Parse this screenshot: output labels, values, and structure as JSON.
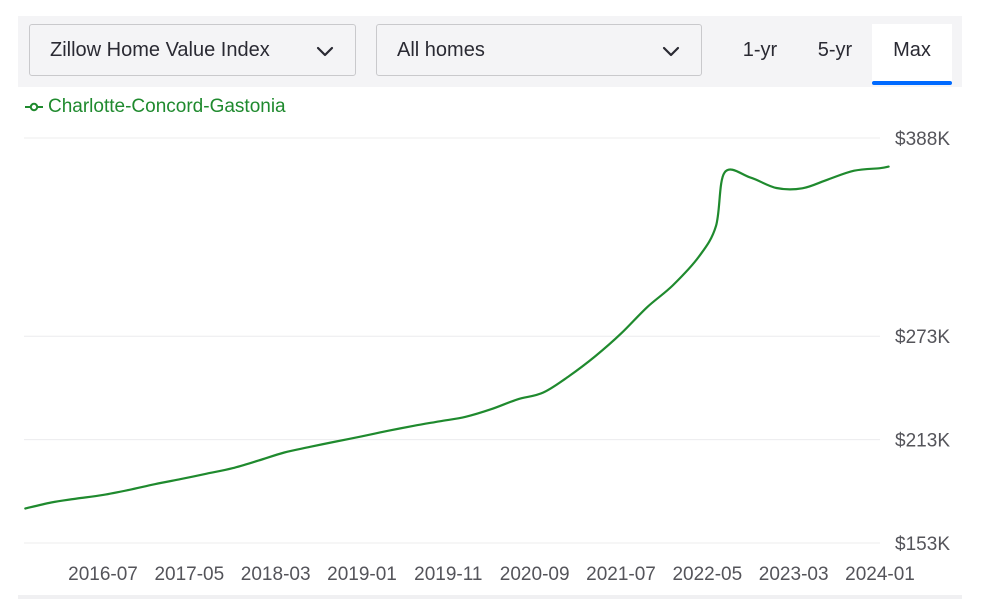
{
  "controls": {
    "metric_select": {
      "value": "Zillow Home Value Index",
      "icon": "chevron-down-icon"
    },
    "home_type_select": {
      "value": "All homes",
      "icon": "chevron-down-icon"
    },
    "ranges": [
      {
        "label": "1-yr",
        "active": false
      },
      {
        "label": "5-yr",
        "active": false
      },
      {
        "label": "Max",
        "active": true
      }
    ],
    "accent_color": "#006aff"
  },
  "legend": {
    "label": "Charlotte-Concord-Gastonia",
    "color": "#1f8a2e"
  },
  "chart_data": {
    "type": "line",
    "title": "",
    "xlabel": "",
    "ylabel": "",
    "x_ticks": [
      "2016-07",
      "2017-05",
      "2018-03",
      "2019-01",
      "2019-11",
      "2020-09",
      "2021-07",
      "2022-05",
      "2023-03",
      "2024-01"
    ],
    "y_ticks": [
      {
        "value": 153000,
        "label": "$153K"
      },
      {
        "value": 213000,
        "label": "$213K"
      },
      {
        "value": 273000,
        "label": "$273K"
      },
      {
        "value": 388000,
        "label": "$388K"
      }
    ],
    "ylim": [
      153000,
      388000
    ],
    "grid": "horizontal",
    "y_axis_position": "right",
    "series": [
      {
        "name": "Charlotte-Concord-Gastonia",
        "color": "#1f8a2e",
        "x": [
          "2015-10",
          "2016-01",
          "2016-04",
          "2016-07",
          "2016-10",
          "2017-01",
          "2017-04",
          "2017-07",
          "2017-10",
          "2018-01",
          "2018-04",
          "2018-07",
          "2018-10",
          "2019-01",
          "2019-04",
          "2019-07",
          "2019-10",
          "2020-01",
          "2020-04",
          "2020-07",
          "2020-10",
          "2021-01",
          "2021-04",
          "2021-07",
          "2021-10",
          "2022-01",
          "2022-04",
          "2022-06",
          "2022-07",
          "2022-10",
          "2023-01",
          "2023-04",
          "2023-07",
          "2023-10",
          "2024-01",
          "2024-02"
        ],
        "values": [
          173000,
          176500,
          178800,
          180900,
          183800,
          187100,
          190100,
          193200,
          196400,
          200800,
          205500,
          208800,
          211900,
          214900,
          218100,
          221000,
          223600,
          226200,
          230700,
          236300,
          240300,
          249900,
          261300,
          274500,
          289700,
          302500,
          319000,
          337000,
          368000,
          365000,
          359000,
          358800,
          364000,
          369000,
          370500,
          371400
        ]
      }
    ]
  }
}
